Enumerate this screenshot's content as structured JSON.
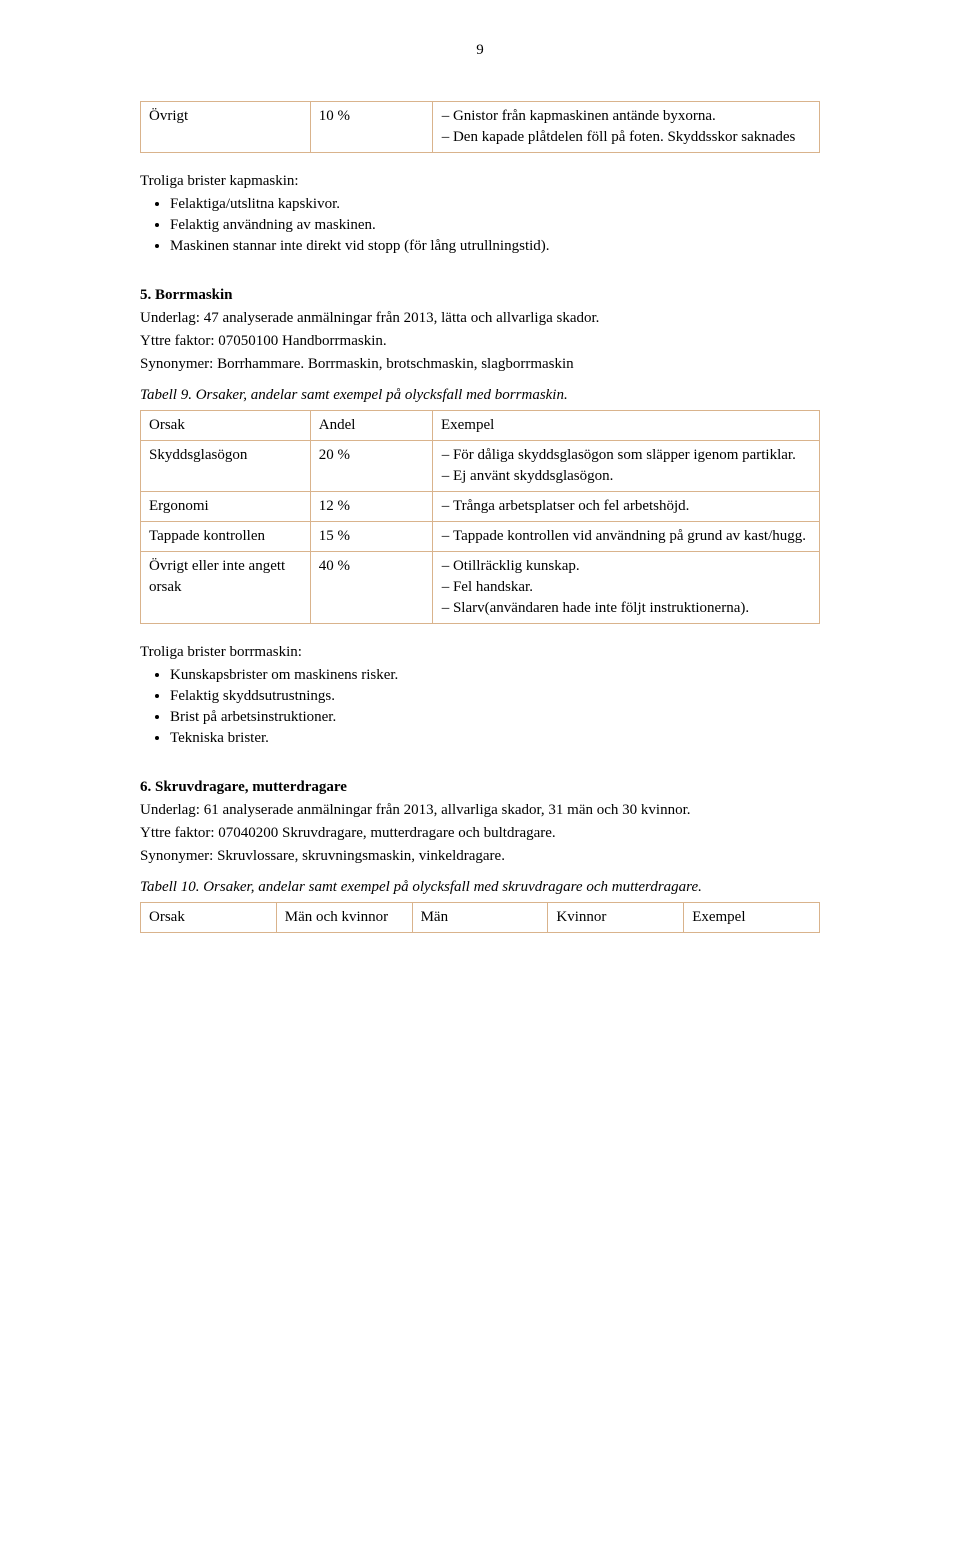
{
  "page_number": "9",
  "top_table": {
    "row": {
      "orsak": "Övrigt",
      "andel": "10 %",
      "items": [
        "Gnistor från kapmaskinen antände byxorna.",
        "Den kapade plåtdelen föll på foten. Skyddsskor saknades"
      ]
    }
  },
  "kapmaskin_brister_heading": "Troliga brister kapmaskin:",
  "kapmaskin_brister": [
    "Felaktiga/utslitna kapskivor.",
    "Felaktig användning av maskinen.",
    "Maskinen stannar inte direkt vid stopp (för lång utrullningstid)."
  ],
  "section5": {
    "title": "5.   Borrmaskin",
    "lines": [
      "Underlag: 47 analyserade anmälningar från 2013, lätta och allvarliga skador.",
      "Yttre faktor: 07050100 Handborrmaskin.",
      "Synonymer: Borrhammare. Borrmaskin, brotschmaskin, slagborrmaskin"
    ],
    "caption": "Tabell 9. Orsaker, andelar samt exempel på olycksfall med borrmaskin.",
    "header": {
      "orsak": "Orsak",
      "andel": "Andel",
      "exempel": "Exempel"
    },
    "rows": [
      {
        "orsak": "Skyddsglasögon",
        "andel": "20 %",
        "items": [
          "För dåliga skyddsglasögon som släpper igenom partiklar.",
          "Ej använt skyddsglasögon."
        ]
      },
      {
        "orsak": "Ergonomi",
        "andel": "12 %",
        "items": [
          "Trånga arbetsplatser och fel arbetshöjd."
        ]
      },
      {
        "orsak": "Tappade kontrollen",
        "andel": "15 %",
        "items": [
          "Tappade kontrollen vid användning på grund av kast/hugg."
        ]
      },
      {
        "orsak": "Övrigt eller inte angett orsak",
        "andel": "40 %",
        "items": [
          "Otillräcklig kunskap.",
          "Fel handskar.",
          "Slarv(användaren hade inte följt instruktionerna)."
        ]
      }
    ]
  },
  "borrmaskin_brister_heading": "Troliga brister borrmaskin:",
  "borrmaskin_brister": [
    "Kunskapsbrister om maskinens risker.",
    "Felaktig skyddsutrustnings.",
    "Brist på arbetsinstruktioner.",
    "Tekniska brister."
  ],
  "section6": {
    "title": "6.   Skruvdragare, mutterdragare",
    "lines": [
      "Underlag: 61 analyserade anmälningar från 2013, allvarliga skador, 31 män och 30 kvinnor.",
      "Yttre faktor: 07040200 Skruvdragare, mutterdragare och bultdragare.",
      "Synonymer: Skruvlossare, skruvningsmaskin, vinkeldragare."
    ],
    "caption": "Tabell 10. Orsaker, andelar samt exempel på olycksfall med skruvdragare och mutterdragare.",
    "header": {
      "c1": "Orsak",
      "c2": "Män och kvinnor",
      "c3": "Män",
      "c4": "Kvinnor",
      "c5": "Exempel"
    }
  },
  "colors": {
    "table_border": "#d9b38c",
    "text": "#000000",
    "background": "#ffffff"
  }
}
